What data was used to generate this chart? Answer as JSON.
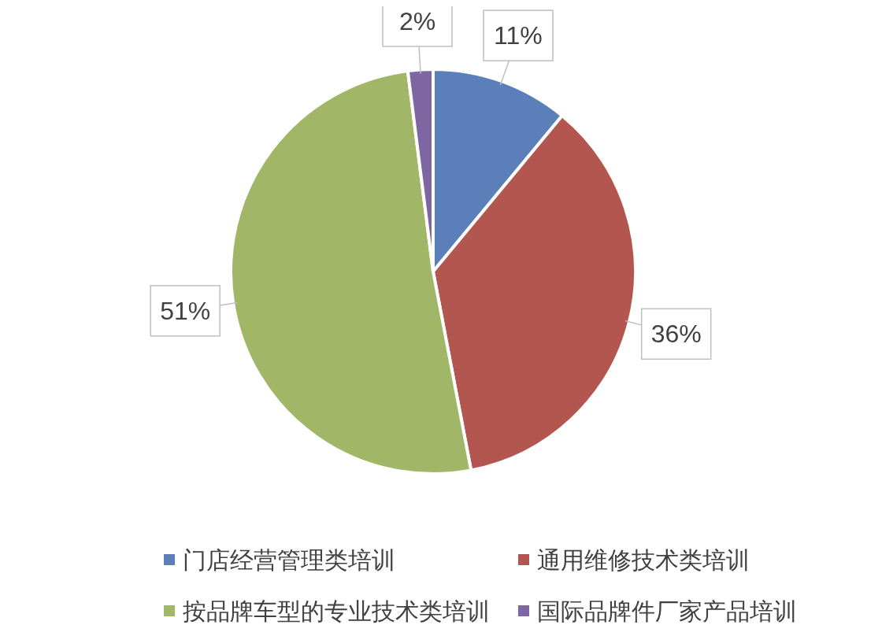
{
  "chart_data": {
    "type": "pie",
    "categories": [
      "门店经营管理类培训",
      "通用维修技术类培训",
      "按品牌车型的专业技术类培训",
      "国际品牌件厂家产品培训"
    ],
    "values": [
      11,
      36,
      51,
      2
    ],
    "colors": [
      "#5b80b9",
      "#b35650",
      "#a1b767",
      "#7e66a2"
    ],
    "value_labels": [
      "11%",
      "36%",
      "51%",
      "2%"
    ],
    "legend": "bottom"
  }
}
